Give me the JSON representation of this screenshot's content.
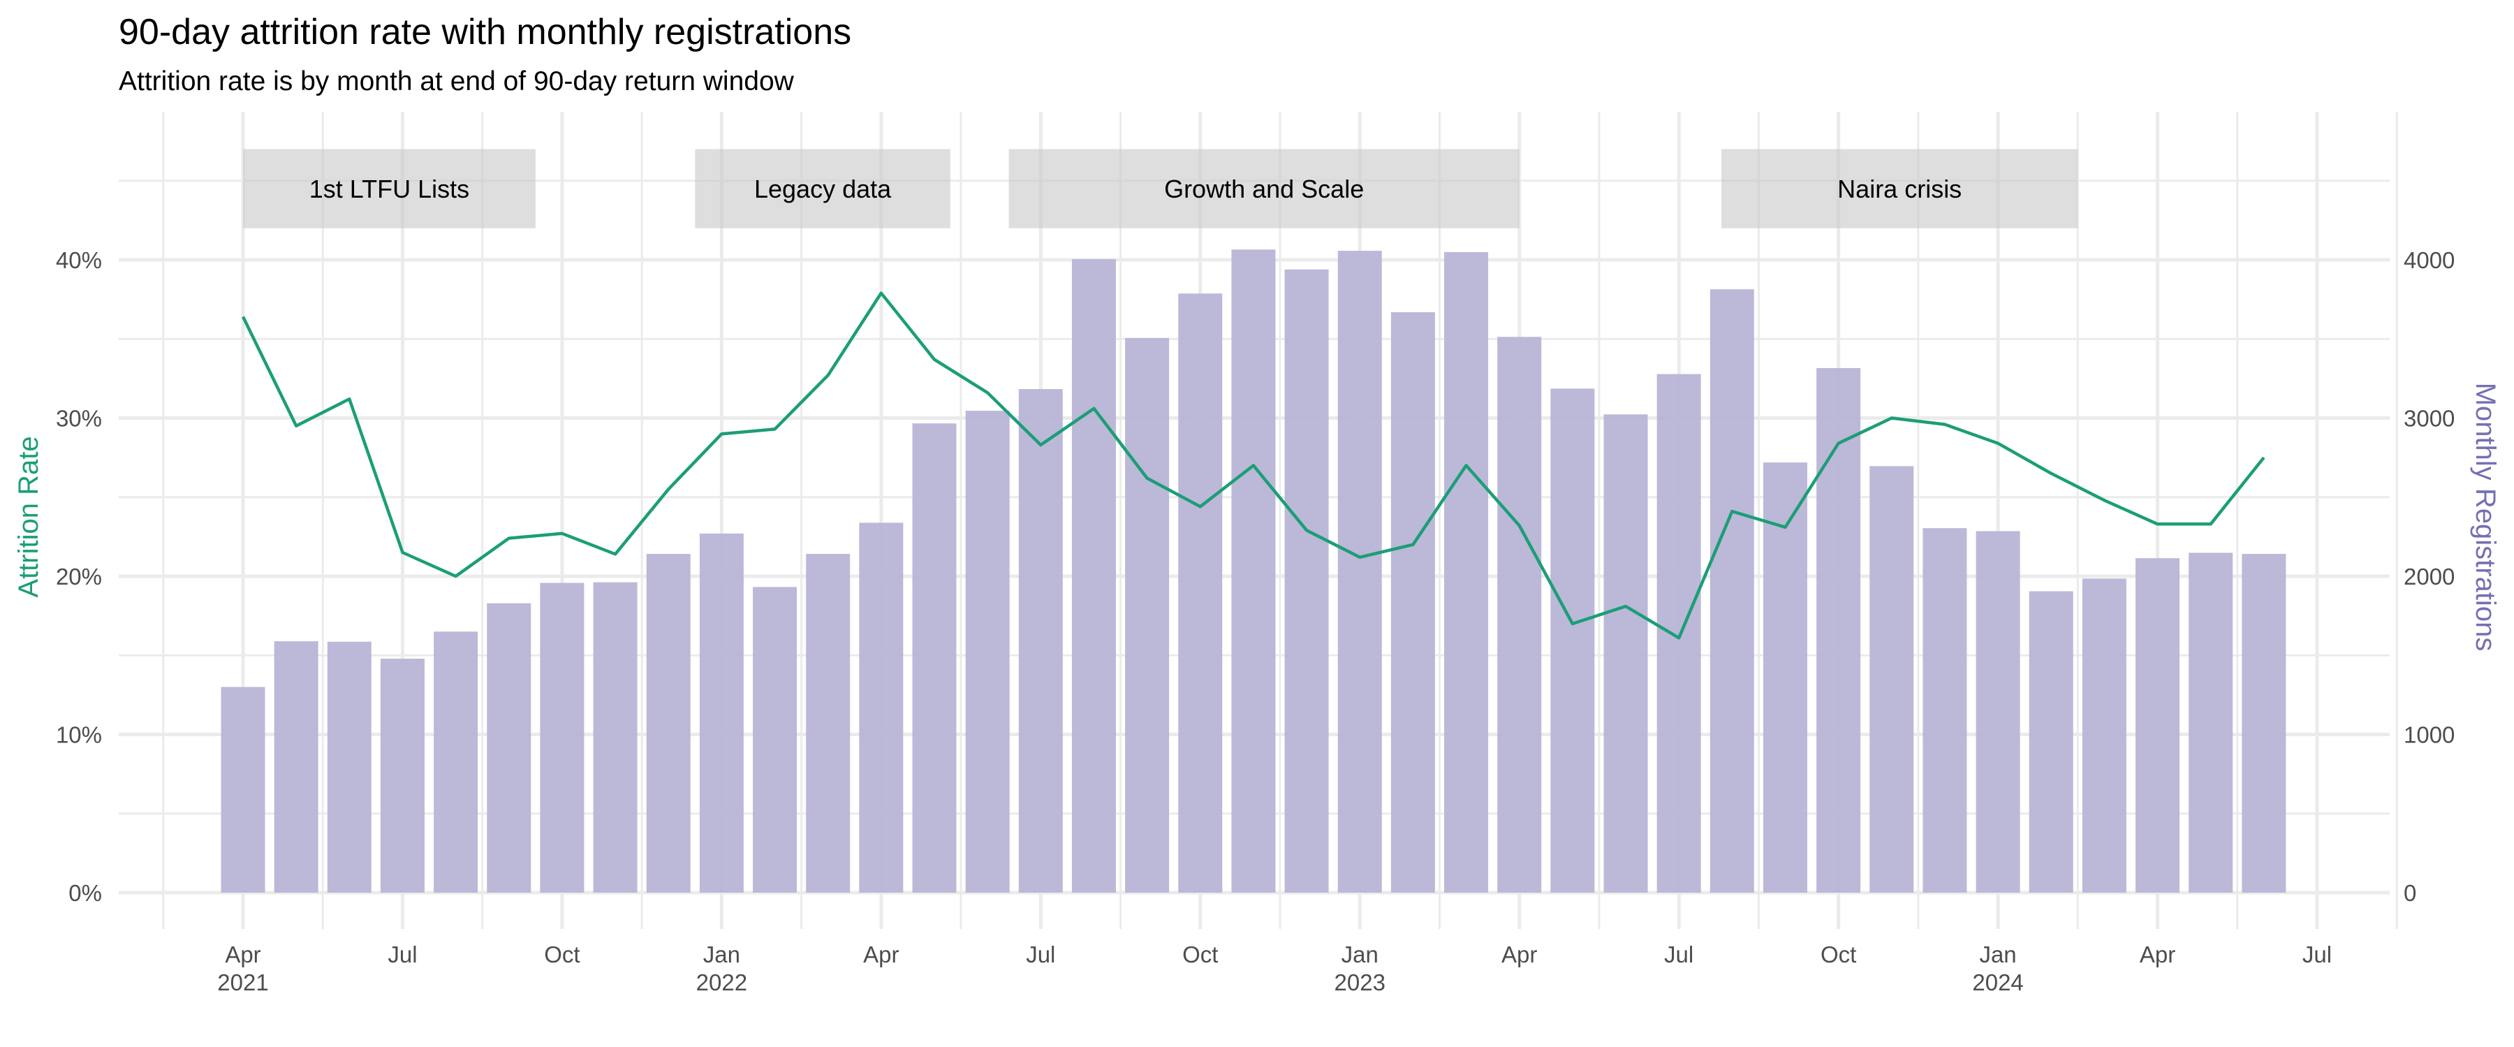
{
  "chart_data": {
    "type": "bar+line",
    "title": "90-day attrition rate with monthly registrations",
    "subtitle": "Attrition rate is by month at end of 90-day return window",
    "ylabel_left": "Attrition Rate",
    "ylabel_right": "Monthly Registrations",
    "ylim_left": [
      0,
      0.49
    ],
    "ylim_right": [
      0,
      4900
    ],
    "left_ticks": [
      {
        "v": 0,
        "label": "0%"
      },
      {
        "v": 0.1,
        "label": "10%"
      },
      {
        "v": 0.2,
        "label": "20%"
      },
      {
        "v": 0.3,
        "label": "30%"
      },
      {
        "v": 0.4,
        "label": "40%"
      }
    ],
    "right_ticks": [
      {
        "v": 0,
        "label": "0"
      },
      {
        "v": 1000,
        "label": "1000"
      },
      {
        "v": 2000,
        "label": "2000"
      },
      {
        "v": 3000,
        "label": "3000"
      },
      {
        "v": 4000,
        "label": "4000"
      }
    ],
    "x_ticks": [
      {
        "m": 0,
        "label": "Apr",
        "year": "2021"
      },
      {
        "m": 3,
        "label": "Jul",
        "year": ""
      },
      {
        "m": 6,
        "label": "Oct",
        "year": ""
      },
      {
        "m": 9,
        "label": "Jan",
        "year": "2022"
      },
      {
        "m": 12,
        "label": "Apr",
        "year": ""
      },
      {
        "m": 15,
        "label": "Jul",
        "year": ""
      },
      {
        "m": 18,
        "label": "Oct",
        "year": ""
      },
      {
        "m": 21,
        "label": "Jan",
        "year": "2023"
      },
      {
        "m": 24,
        "label": "Apr",
        "year": ""
      },
      {
        "m": 27,
        "label": "Jul",
        "year": ""
      },
      {
        "m": 30,
        "label": "Oct",
        "year": ""
      },
      {
        "m": 33,
        "label": "Jan",
        "year": "2024"
      },
      {
        "m": 36,
        "label": "Apr",
        "year": ""
      },
      {
        "m": 39,
        "label": "Jul",
        "year": ""
      }
    ],
    "months": [
      "2021-04",
      "2021-05",
      "2021-06",
      "2021-07",
      "2021-08",
      "2021-09",
      "2021-10",
      "2021-11",
      "2021-12",
      "2022-01",
      "2022-02",
      "2022-03",
      "2022-04",
      "2022-05",
      "2022-06",
      "2022-07",
      "2022-08",
      "2022-09",
      "2022-10",
      "2022-11",
      "2022-12",
      "2023-01",
      "2023-02",
      "2023-03",
      "2023-04",
      "2023-05",
      "2023-06",
      "2023-07",
      "2023-08",
      "2023-09",
      "2023-10",
      "2023-11",
      "2023-12",
      "2024-01",
      "2024-02",
      "2024-03",
      "2024-04",
      "2024-05",
      "2024-06"
    ],
    "series": [
      {
        "name": "Monthly Registrations",
        "type": "bar",
        "axis": "right",
        "color": "#b8b4d6",
        "values": [
          1300,
          1589,
          1586,
          1479,
          1650,
          1829,
          1958,
          1962,
          2141,
          2270,
          1932,
          2141,
          2338,
          2966,
          3046,
          3183,
          4004,
          3506,
          3787,
          4065,
          3939,
          4057,
          3669,
          4049,
          3513,
          3186,
          3023,
          3278,
          3814,
          2719,
          3316,
          2696,
          2304,
          2285,
          1905,
          1985,
          2114,
          2148,
          2141
        ]
      },
      {
        "name": "Attrition Rate",
        "type": "line",
        "axis": "left",
        "color": "#1b9e77",
        "values": [
          0.364,
          0.295,
          0.312,
          0.215,
          0.2,
          0.224,
          0.227,
          0.214,
          0.255,
          0.29,
          0.293,
          0.327,
          0.379,
          0.337,
          0.316,
          0.283,
          0.306,
          0.262,
          0.244,
          0.27,
          0.229,
          0.212,
          0.22,
          0.27,
          0.232,
          0.17,
          0.181,
          0.161,
          0.241,
          0.231,
          0.284,
          0.3,
          0.296,
          0.284,
          0.265,
          0.248,
          0.233,
          0.233,
          0.275
        ]
      }
    ],
    "annotations": [
      {
        "label": "1st LTFU Lists",
        "start_month": 0,
        "end_month": 5.5,
        "ymin": 0.42,
        "ymax": 0.47
      },
      {
        "label": "Legacy data",
        "start_month": 8.5,
        "end_month": 13.3,
        "ymin": 0.42,
        "ymax": 0.47
      },
      {
        "label": "Growth and Scale",
        "start_month": 14.4,
        "end_month": 24,
        "ymin": 0.42,
        "ymax": 0.47
      },
      {
        "label": "Naira crisis",
        "start_month": 27.8,
        "end_month": 34.5,
        "ymin": 0.42,
        "ymax": 0.47
      }
    ],
    "grid": true,
    "legend": "none",
    "colors": {
      "line": "#1b9e77",
      "bar": "#b8b4d6",
      "annotation": "#dedede",
      "right_title": "#7570b3"
    }
  }
}
